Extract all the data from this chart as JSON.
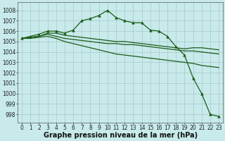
{
  "background_color": "#c8eaea",
  "grid_color": "#9fbfbf",
  "line_color": "#1a5c1a",
  "xlabel": "Graphe pression niveau de la mer (hPa)",
  "xlabel_fontsize": 7,
  "ylim": [
    997.2,
    1008.8
  ],
  "xlim": [
    -0.5,
    23.5
  ],
  "yticks": [
    998,
    999,
    1000,
    1001,
    1002,
    1003,
    1004,
    1005,
    1006,
    1007,
    1008
  ],
  "xticks": [
    0,
    1,
    2,
    3,
    4,
    5,
    6,
    7,
    8,
    9,
    10,
    11,
    12,
    13,
    14,
    15,
    16,
    17,
    18,
    19,
    20,
    21,
    22,
    23
  ],
  "tick_fontsize": 5.5,
  "series": [
    {
      "x": [
        0,
        1,
        2,
        3,
        4,
        5,
        6,
        7,
        8,
        9,
        10,
        11,
        12,
        13,
        14,
        15,
        16,
        17,
        18,
        19,
        20,
        21,
        22,
        23
      ],
      "y": [
        1005.3,
        1005.5,
        1005.7,
        1006.0,
        1006.0,
        1005.8,
        1006.1,
        1007.0,
        1007.2,
        1007.5,
        1008.0,
        1007.3,
        1007.0,
        1006.8,
        1006.8,
        1006.1,
        1006.0,
        1005.5,
        1004.5,
        1003.7,
        1001.5,
        1000.0,
        998.0,
        997.8
      ],
      "marker": "^",
      "markersize": 2.5,
      "linewidth": 0.9
    },
    {
      "x": [
        0,
        1,
        2,
        3,
        4,
        5,
        6,
        7,
        8,
        9,
        10,
        11,
        12,
        13,
        14,
        15,
        16,
        17,
        18,
        19,
        20,
        21,
        22,
        23
      ],
      "y": [
        1005.3,
        1005.4,
        1005.5,
        1005.8,
        1005.8,
        1005.6,
        1005.5,
        1005.4,
        1005.3,
        1005.2,
        1005.1,
        1005.0,
        1005.0,
        1004.9,
        1004.8,
        1004.7,
        1004.6,
        1004.5,
        1004.4,
        1004.3,
        1004.4,
        1004.4,
        1004.3,
        1004.2
      ],
      "marker": null,
      "markersize": 0,
      "linewidth": 0.9
    },
    {
      "x": [
        0,
        1,
        2,
        3,
        4,
        5,
        6,
        7,
        8,
        9,
        10,
        11,
        12,
        13,
        14,
        15,
        16,
        17,
        18,
        19,
        20,
        21,
        22,
        23
      ],
      "y": [
        1005.3,
        1005.4,
        1005.5,
        1005.7,
        1005.5,
        1005.3,
        1005.2,
        1005.1,
        1005.0,
        1004.9,
        1004.8,
        1004.8,
        1004.7,
        1004.7,
        1004.6,
        1004.5,
        1004.4,
        1004.3,
        1004.2,
        1004.1,
        1004.1,
        1004.0,
        1003.9,
        1003.8
      ],
      "marker": null,
      "markersize": 0,
      "linewidth": 0.9
    },
    {
      "x": [
        0,
        1,
        2,
        3,
        4,
        5,
        6,
        7,
        8,
        9,
        10,
        11,
        12,
        13,
        14,
        15,
        16,
        17,
        18,
        19,
        20,
        21,
        22,
        23
      ],
      "y": [
        1005.3,
        1005.3,
        1005.4,
        1005.5,
        1005.3,
        1005.0,
        1004.8,
        1004.6,
        1004.4,
        1004.2,
        1004.0,
        1003.8,
        1003.7,
        1003.6,
        1003.5,
        1003.4,
        1003.3,
        1003.2,
        1003.1,
        1003.0,
        1002.9,
        1002.7,
        1002.6,
        1002.5
      ],
      "marker": null,
      "markersize": 0,
      "linewidth": 0.9
    }
  ]
}
